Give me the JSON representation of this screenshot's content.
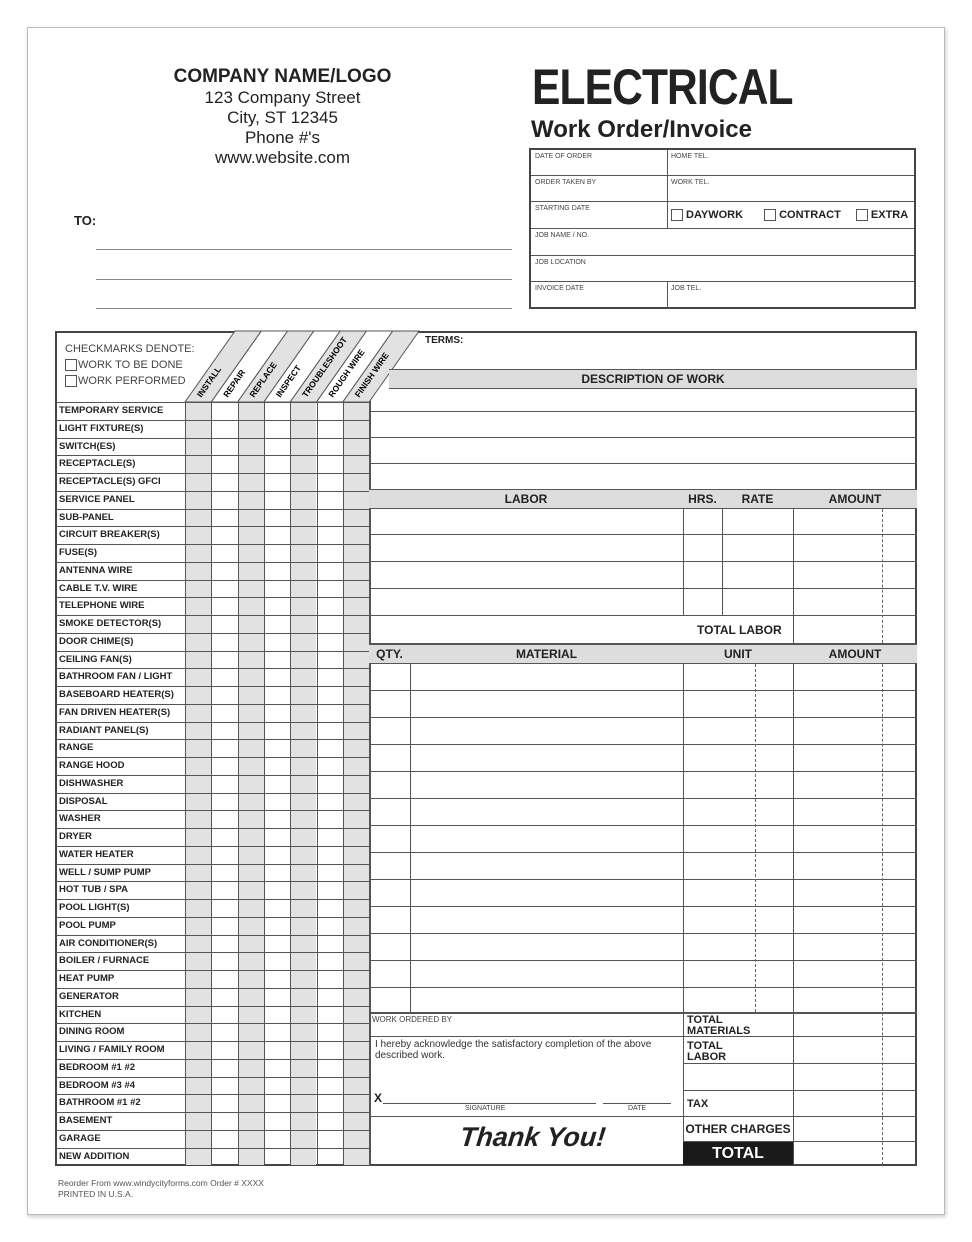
{
  "company": {
    "name": "COMPANY NAME/LOGO",
    "street": "123 Company Street",
    "city": "City, ST 12345",
    "phone": "Phone #'s",
    "website": "www.website.com"
  },
  "title": {
    "main": "ELECTRICAL",
    "sub": "Work Order/Invoice"
  },
  "to_label": "TO:",
  "info": {
    "date_of_order": "DATE OF ORDER",
    "home_tel": "HOME TEL.",
    "order_taken_by": "ORDER TAKEN BY",
    "work_tel": "WORK TEL.",
    "starting_date": "STARTING DATE",
    "daywork": "DAYWORK",
    "contract": "CONTRACT",
    "extra": "EXTRA",
    "job_name": "JOB NAME / NO.",
    "job_location": "JOB LOCATION",
    "invoice_date": "INVOICE DATE",
    "job_tel": "JOB TEL."
  },
  "checkmarks": {
    "title": "CHECKMARKS DENOTE:",
    "to_be_done": "WORK TO BE DONE",
    "performed": "WORK PERFORMED"
  },
  "work_types": [
    "INSTALL",
    "REPAIR",
    "REPLACE",
    "INSPECT",
    "TROUBLESHOOT",
    "ROUGH WIRE",
    "FINISH WIRE"
  ],
  "items": [
    "TEMPORARY SERVICE",
    "LIGHT FIXTURE(S)",
    "SWITCH(ES)",
    "RECEPTACLE(S)",
    "RECEPTACLE(S) GFCI",
    "SERVICE PANEL",
    "SUB-PANEL",
    "CIRCUIT BREAKER(S)",
    "FUSE(S)",
    "ANTENNA WIRE",
    "CABLE T.V. WIRE",
    "TELEPHONE WIRE",
    "SMOKE DETECTOR(S)",
    "DOOR CHIME(S)",
    "CEILING FAN(S)",
    "BATHROOM FAN / LIGHT",
    "BASEBOARD HEATER(S)",
    "FAN DRIVEN HEATER(S)",
    "RADIANT PANEL(S)",
    "RANGE",
    "RANGE HOOD",
    "DISHWASHER",
    "DISPOSAL",
    "WASHER",
    "DRYER",
    "WATER HEATER",
    "WELL / SUMP PUMP",
    "HOT TUB / SPA",
    "POOL LIGHT(S)",
    "POOL PUMP",
    "AIR CONDITIONER(S)",
    "BOILER / FURNACE",
    "HEAT PUMP",
    "GENERATOR",
    "KITCHEN",
    "DINING ROOM",
    "LIVING / FAMILY ROOM",
    "BEDROOM  #1  #2",
    "BEDROOM  #3  #4",
    "BATHROOM  #1  #2",
    "BASEMENT",
    "GARAGE",
    "NEW ADDITION"
  ],
  "terms_label": "TERMS:",
  "description_header": "DESCRIPTION OF WORK",
  "labor": {
    "labor": "LABOR",
    "hrs": "HRS.",
    "rate": "RATE",
    "amount": "AMOUNT",
    "total": "TOTAL LABOR"
  },
  "material": {
    "qty": "QTY.",
    "material": "MATERIAL",
    "unit": "UNIT",
    "amount": "AMOUNT"
  },
  "bottom": {
    "work_ordered_by": "WORK ORDERED BY",
    "acknowledge": "I hereby acknowledge the satisfactory completion of the above described work.",
    "x": "X",
    "signature": "SIGNATURE",
    "date": "DATE",
    "thank_you": "Thank You!",
    "total_materials": "TOTAL MATERIALS",
    "total_labor": "TOTAL LABOR",
    "tax": "TAX",
    "other_charges": "OTHER CHARGES",
    "total": "TOTAL"
  },
  "footer": {
    "reorder": "Reorder From  www.windycityforms.com  Order # XXXX",
    "printed": "PRINTED IN U.S.A."
  }
}
